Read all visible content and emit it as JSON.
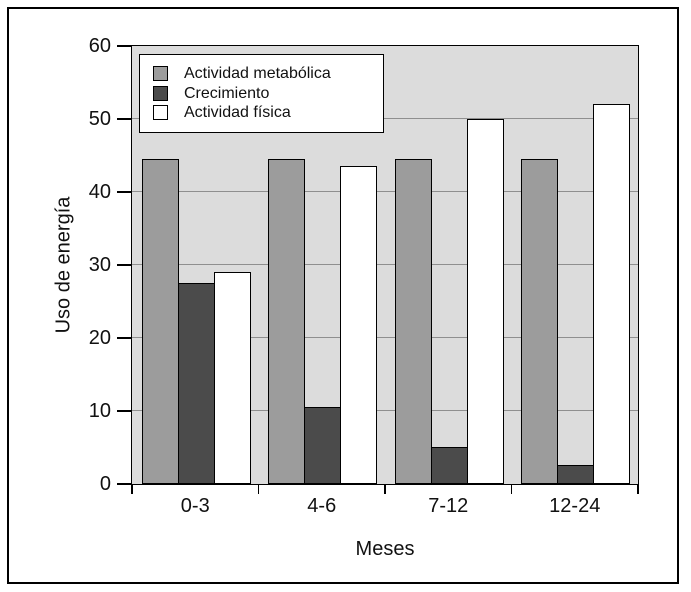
{
  "chart_data": {
    "type": "bar",
    "title": "",
    "categories": [
      "0-3",
      "4-6",
      "7-12",
      "12-24"
    ],
    "series": [
      {
        "name": "Actividad metabólica",
        "color": "#9c9c9c",
        "values": [
          44.5,
          44.5,
          44.5,
          44.5
        ]
      },
      {
        "name": "Crecimiento",
        "color": "#4b4b4b",
        "values": [
          27.5,
          10.5,
          5,
          2.5
        ]
      },
      {
        "name": "Actividad física",
        "color": "#ffffff",
        "values": [
          29,
          43.5,
          50,
          52
        ]
      }
    ],
    "xlabel": "Meses",
    "ylabel": "Uso de energía",
    "ylim": [
      0,
      60
    ],
    "yticks": [
      0,
      10,
      20,
      30,
      40,
      50,
      60
    ],
    "grid": true,
    "legend_position": "top-left",
    "colors": {
      "figure_background": "#ffffff",
      "figure_border": "#000000",
      "plot_background": "#dcdcdc",
      "gridline": "#8f8f8f",
      "axis": "#000000",
      "bar_border": "#000000",
      "legend_background": "#ffffff",
      "text": "#111111"
    }
  }
}
